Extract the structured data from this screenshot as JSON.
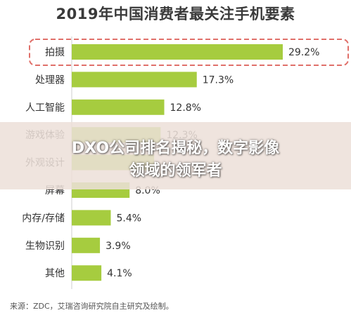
{
  "chart_data": {
    "type": "bar",
    "orientation": "horizontal",
    "title": "2019年中国消费者最关注手机要素",
    "categories": [
      "拍摄",
      "处理器",
      "人工智能",
      "游戏体验",
      "外观设计",
      "屏幕",
      "内存/存储",
      "生物识别",
      "其他"
    ],
    "values": [
      29.2,
      17.3,
      12.8,
      12.3,
      11.4,
      8.0,
      5.4,
      3.9,
      4.1
    ],
    "value_labels": [
      "29.2%",
      "17.3%",
      "12.8%",
      "12.3%",
      "",
      "8.0%",
      "5.4%",
      "3.9%",
      "4.1%"
    ],
    "unit": "%",
    "highlight_category": "拍摄",
    "bar_color": "#a6cc3f",
    "highlight_border_color": "#e0706a",
    "grid": false,
    "legend": "none"
  },
  "source": "来源：ZDC，艾瑞咨询研究院自主研究及绘制。",
  "overlay": {
    "line1": "DXO公司排名揭秘，数字影像",
    "line2": "领域的领军者"
  }
}
